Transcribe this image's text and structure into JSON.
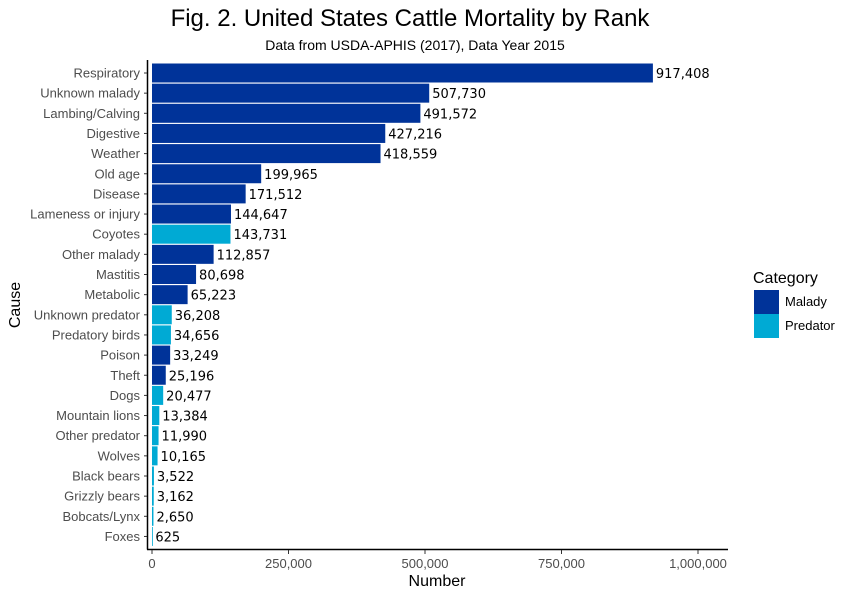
{
  "chart_data": {
    "type": "bar",
    "orientation": "horizontal",
    "title": "Fig. 2. United States Cattle Mortality by Rank",
    "subtitle": "Data from USDA-APHIS (2017), Data Year 2015",
    "xlabel": "Number",
    "ylabel": "Cause",
    "xlim": [
      0,
      1000000
    ],
    "x_ticks": [
      0,
      250000,
      500000,
      750000,
      1000000
    ],
    "x_tick_labels": [
      "0",
      "250,000",
      "500,000",
      "750,000",
      "1,000,000"
    ],
    "grid": false,
    "legend": {
      "title": "Category",
      "placement": "right",
      "entries": [
        {
          "name": "Malady",
          "color": "#003399"
        },
        {
          "name": "Predator",
          "color": "#00AAD4"
        }
      ]
    },
    "colors": {
      "Malady": "#003399",
      "Predator": "#00AAD4"
    },
    "categories": [
      "Respiratory",
      "Unknown malady",
      "Lambing/Calving",
      "Digestive",
      "Weather",
      "Old age",
      "Disease",
      "Lameness or injury",
      "Coyotes",
      "Other malady",
      "Mastitis",
      "Metabolic",
      "Unknown predator",
      "Predatory birds",
      "Poison",
      "Theft",
      "Dogs",
      "Mountain lions",
      "Other predator",
      "Wolves",
      "Black bears",
      "Grizzly bears",
      "Bobcats/Lynx",
      "Foxes"
    ],
    "values": [
      917408,
      507730,
      491572,
      427216,
      418559,
      199965,
      171512,
      144647,
      143731,
      112857,
      80698,
      65223,
      36208,
      34656,
      33249,
      25196,
      20477,
      13384,
      11990,
      10165,
      3522,
      3162,
      2650,
      625
    ],
    "value_labels": [
      "917,408",
      "507,730",
      "491,572",
      "427,216",
      "418,559",
      "199,965",
      "171,512",
      "144,647",
      "143,731",
      "112,857",
      "80,698",
      "65,223",
      "36,208",
      "34,656",
      "33,249",
      "25,196",
      "20,477",
      "13,384",
      "11,990",
      "10,165",
      "3,522",
      "3,162",
      "2,650",
      "625"
    ],
    "bar_category": [
      "Malady",
      "Malady",
      "Malady",
      "Malady",
      "Malady",
      "Malady",
      "Malady",
      "Malady",
      "Predator",
      "Malady",
      "Malady",
      "Malady",
      "Predator",
      "Predator",
      "Malady",
      "Malady",
      "Predator",
      "Predator",
      "Predator",
      "Predator",
      "Predator",
      "Predator",
      "Predator",
      "Predator"
    ]
  }
}
